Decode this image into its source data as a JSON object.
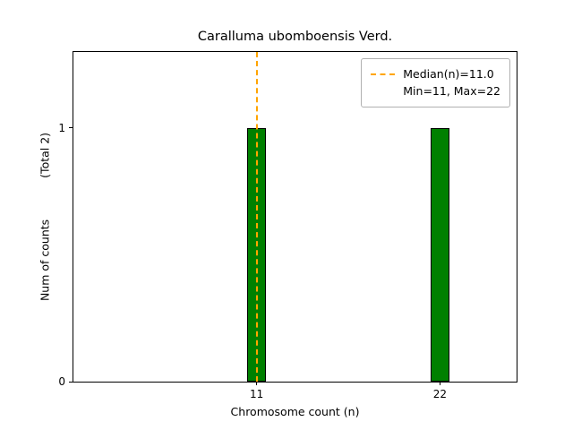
{
  "title": "Caralluma ubomboensis Verd.",
  "axes": {
    "xlabel": "Chromosome count (n)",
    "ylabel": "Num of counts",
    "ylabel_total": "(Total 2)",
    "xtick_labels": [
      "11",
      "22"
    ],
    "ytick_labels": [
      "0",
      "1"
    ]
  },
  "legend": {
    "median_label": "Median(n)=11.0",
    "minmax_label": "Min=11, Max=22"
  },
  "colors": {
    "bar_fill": "#008000",
    "bar_edge": "#000000",
    "median_line": "#FFA500"
  },
  "chart_data": {
    "type": "bar",
    "title": "Caralluma ubomboensis Verd.",
    "xlabel": "Chromosome count (n)",
    "ylabel": "Num of counts (Total 2)",
    "categories": [
      11,
      22
    ],
    "values": [
      1,
      1
    ],
    "bar_width": 1.1,
    "xlim": [
      0,
      26.6
    ],
    "ylim": [
      0,
      1.3
    ],
    "yticks": [
      0,
      1
    ],
    "median": 11.0,
    "min": 11,
    "max": 22,
    "total_counts": 2,
    "legend_position": "upper right",
    "grid": false
  }
}
